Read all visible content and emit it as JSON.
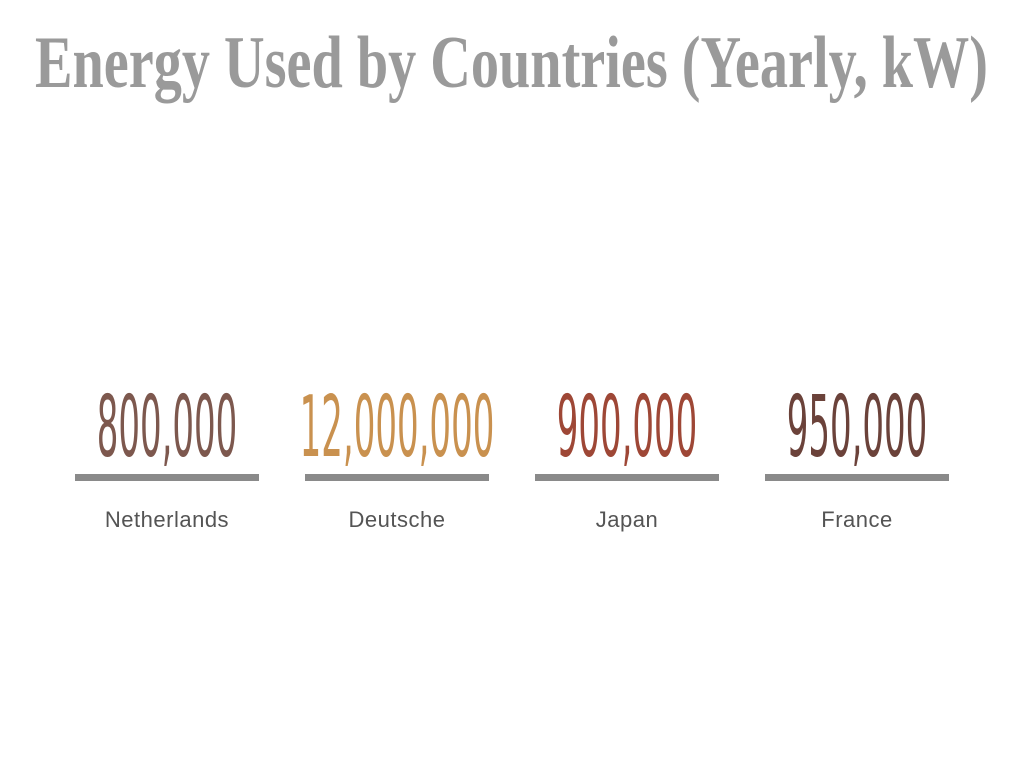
{
  "slide": {
    "title": "Energy Used by Countries (Yearly, kW)",
    "title_color": "#9a9a9a",
    "background_color": "#ffffff"
  },
  "chart_data": {
    "type": "bar",
    "title": "Energy Used by Countries (Yearly, kW)",
    "categories": [
      "Netherlands",
      "Deutsche",
      "Japan",
      "France"
    ],
    "values": [
      800000,
      12000000,
      900000,
      950000
    ],
    "value_labels": [
      "800,000",
      "12,000,000",
      "900,000",
      "950,000"
    ],
    "value_colors": [
      "#7d584e",
      "#c9914f",
      "#9e4736",
      "#6b423a"
    ],
    "underline_color": "#8a8a8a",
    "category_label_color": "#545454",
    "legend": false,
    "grid": false,
    "layout": "kpi-stat-row"
  }
}
